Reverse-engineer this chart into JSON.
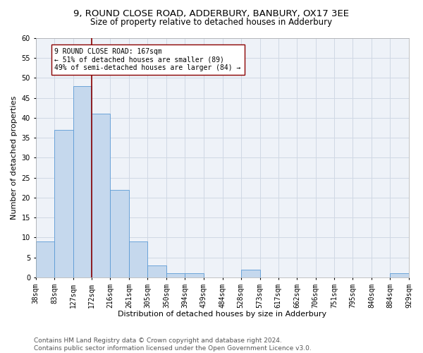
{
  "title": "9, ROUND CLOSE ROAD, ADDERBURY, BANBURY, OX17 3EE",
  "subtitle": "Size of property relative to detached houses in Adderbury",
  "xlabel": "Distribution of detached houses by size in Adderbury",
  "ylabel": "Number of detached properties",
  "bin_edges": [
    38,
    83,
    127,
    172,
    216,
    261,
    305,
    350,
    394,
    439,
    484,
    528,
    573,
    617,
    662,
    706,
    751,
    795,
    840,
    884,
    929
  ],
  "bin_labels": [
    "38sqm",
    "83sqm",
    "127sqm",
    "172sqm",
    "216sqm",
    "261sqm",
    "305sqm",
    "350sqm",
    "394sqm",
    "439sqm",
    "484sqm",
    "528sqm",
    "573sqm",
    "617sqm",
    "662sqm",
    "706sqm",
    "751sqm",
    "795sqm",
    "840sqm",
    "884sqm",
    "929sqm"
  ],
  "counts": [
    9,
    37,
    48,
    41,
    22,
    9,
    3,
    1,
    1,
    0,
    0,
    2,
    0,
    0,
    0,
    0,
    0,
    0,
    0,
    1
  ],
  "bar_color": "#c5d8ed",
  "bar_edge_color": "#5b9bd5",
  "property_line_x": 172,
  "vline_color": "#8b0000",
  "annotation_text": "9 ROUND CLOSE ROAD: 167sqm\n← 51% of detached houses are smaller (89)\n49% of semi-detached houses are larger (84) →",
  "annotation_box_color": "#ffffff",
  "annotation_box_edgecolor": "#8b0000",
  "ylim": [
    0,
    60
  ],
  "yticks": [
    0,
    5,
    10,
    15,
    20,
    25,
    30,
    35,
    40,
    45,
    50,
    55,
    60
  ],
  "grid_color": "#d0d8e4",
  "bg_color": "#eef2f8",
  "footer": "Contains HM Land Registry data © Crown copyright and database right 2024.\nContains public sector information licensed under the Open Government Licence v3.0.",
  "title_fontsize": 9.5,
  "subtitle_fontsize": 8.5,
  "axis_label_fontsize": 8,
  "tick_fontsize": 7,
  "annotation_fontsize": 7,
  "footer_fontsize": 6.5
}
